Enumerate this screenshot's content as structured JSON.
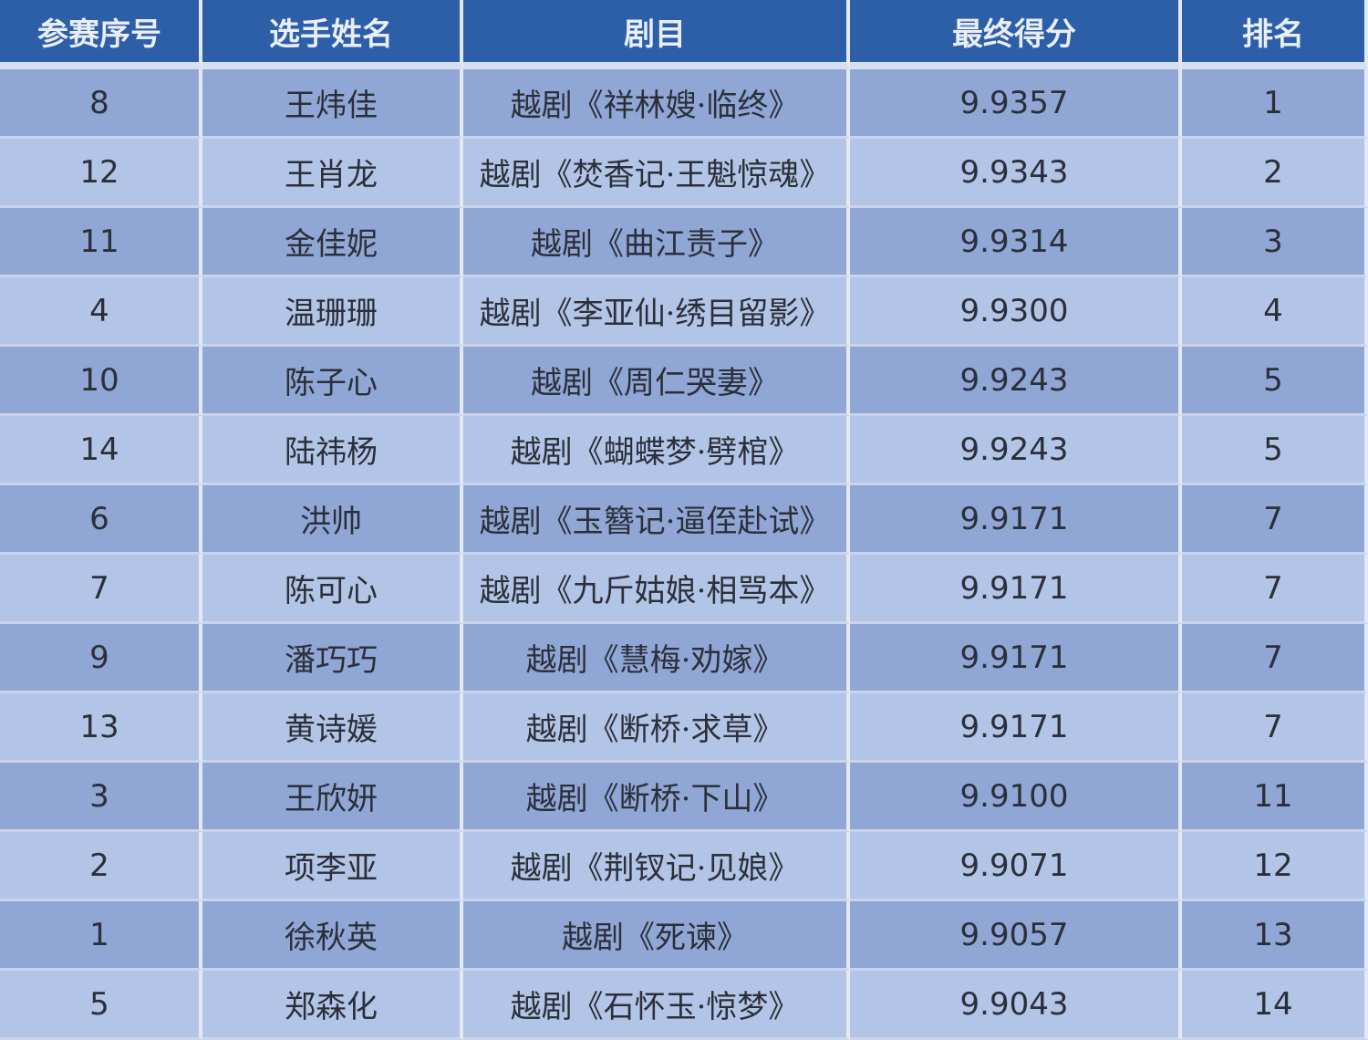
{
  "table": {
    "header": [
      "参赛序号",
      "选手姓名",
      "剧目",
      "最终得分",
      "排名"
    ],
    "rows": [
      [
        "8",
        "王炜佳",
        "越剧《祥林嫂·临终》",
        "9.9357",
        "1"
      ],
      [
        "12",
        "王肖龙",
        "越剧《焚香记·王魁惊魂》",
        "9.9343",
        "2"
      ],
      [
        "11",
        "金佳妮",
        "越剧《曲江责子》",
        "9.9314",
        "3"
      ],
      [
        "4",
        "温珊珊",
        "越剧《李亚仙·绣目留影》",
        "9.9300",
        "4"
      ],
      [
        "10",
        "陈子心",
        "越剧《周仁哭妻》",
        "9.9243",
        "5"
      ],
      [
        "14",
        "陆祎杨",
        "越剧《蝴蝶梦·劈棺》",
        "9.9243",
        "5"
      ],
      [
        "6",
        "洪帅",
        "越剧《玉簪记·逼侄赴试》",
        "9.9171",
        "7"
      ],
      [
        "7",
        "陈可心",
        "越剧《九斤姑娘·相骂本》",
        "9.9171",
        "7"
      ],
      [
        "9",
        "潘巧巧",
        "越剧《慧梅·劝嫁》",
        "9.9171",
        "7"
      ],
      [
        "13",
        "黄诗媛",
        "越剧《断桥·求草》",
        "9.9171",
        "7"
      ],
      [
        "3",
        "王欣妍",
        "越剧《断桥·下山》",
        "9.9100",
        "11"
      ],
      [
        "2",
        "项李亚",
        "越剧《荆钗记·见娘》",
        "9.9071",
        "12"
      ],
      [
        "1",
        "徐秋英",
        "越剧《死谏》",
        "9.9057",
        "13"
      ],
      [
        "5",
        "郑森化",
        "越剧《石怀玉·惊梦》",
        "9.9043",
        "14"
      ]
    ]
  }
}
